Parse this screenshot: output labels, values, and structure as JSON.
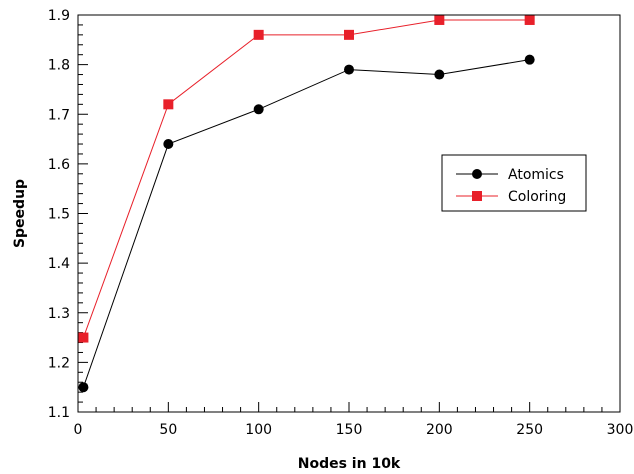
{
  "chart_data": {
    "type": "line",
    "title": "",
    "xlabel": "Nodes in 10k",
    "ylabel": "Speedup",
    "xlim": [
      0,
      300
    ],
    "ylim": [
      1.1,
      1.9
    ],
    "x_ticks": [
      0,
      50,
      100,
      150,
      200,
      250,
      300
    ],
    "x_tick_labels": [
      "0",
      "50",
      "100",
      "150",
      "200",
      "250",
      "300"
    ],
    "y_ticks": [
      1.1,
      1.2,
      1.3,
      1.4,
      1.5,
      1.6,
      1.7,
      1.8,
      1.9
    ],
    "y_tick_labels": [
      "1.1",
      "1.2",
      "1.3",
      "1.4",
      "1.5",
      "1.6",
      "1.7",
      "1.8",
      "1.9"
    ],
    "x_minor_step": 10,
    "y_minor_step": 0.02,
    "grid": false,
    "legend_position": "right-middle",
    "series": [
      {
        "name": "Atomics",
        "color": "#000000",
        "marker": "circle",
        "x": [
          3,
          50,
          100,
          150,
          200,
          250
        ],
        "y": [
          1.15,
          1.64,
          1.71,
          1.79,
          1.78,
          1.81
        ]
      },
      {
        "name": "Coloring",
        "color": "#e8202a",
        "marker": "square",
        "x": [
          3,
          50,
          100,
          150,
          200,
          250
        ],
        "y": [
          1.25,
          1.72,
          1.86,
          1.86,
          1.89,
          1.89
        ]
      }
    ]
  }
}
